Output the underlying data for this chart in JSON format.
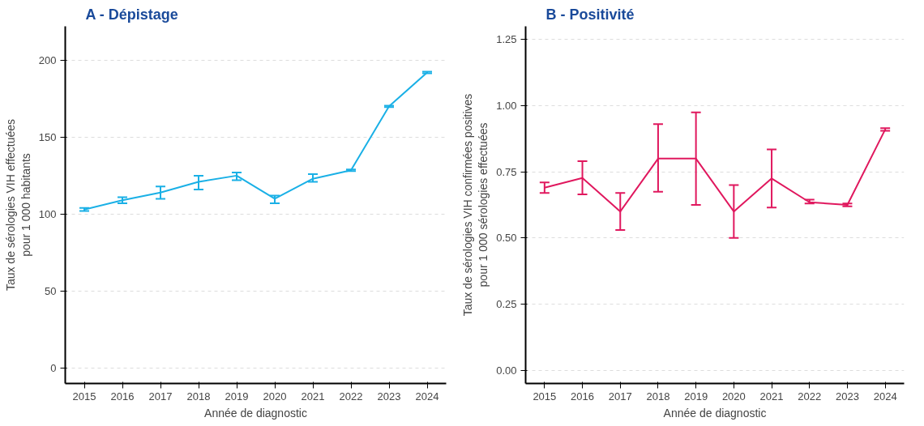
{
  "chart_data": [
    {
      "type": "line",
      "title": "A - Dépistage",
      "xlabel": "Année de diagnostic",
      "ylabel": "Taux de sérologies VIH effectuées\npour 1 000 habitants",
      "x": [
        2015,
        2016,
        2017,
        2018,
        2019,
        2020,
        2021,
        2022,
        2023,
        2024
      ],
      "xlim": [
        2014.5,
        2024.5
      ],
      "xticks": [
        2015,
        2016,
        2017,
        2018,
        2019,
        2020,
        2021,
        2022,
        2023,
        2024
      ],
      "ylim": [
        -10,
        222
      ],
      "yticks": [
        0,
        50,
        100,
        150,
        200
      ],
      "grid": "y",
      "marker": "none",
      "line_style": "solid",
      "series": [
        {
          "color": "#1ab0e6",
          "values": [
            103,
            109,
            114,
            121,
            125,
            110,
            123,
            128.5,
            170,
            192
          ],
          "errors": [
            [
              102,
              104
            ],
            [
              107,
              111
            ],
            [
              110,
              118
            ],
            [
              116,
              125
            ],
            [
              122,
              127
            ],
            [
              107,
              112
            ],
            [
              121,
              126
            ],
            [
              128,
              129
            ],
            [
              169.5,
              170.5
            ],
            [
              191.5,
              192.5
            ]
          ]
        }
      ]
    },
    {
      "type": "line",
      "title": "B - Positivité",
      "xlabel": "Année de diagnostic",
      "ylabel": "Taux de sérologies VIH confirmées positives\npour 1 000 sérologies effectuées",
      "x": [
        2015,
        2016,
        2017,
        2018,
        2019,
        2020,
        2021,
        2022,
        2023,
        2024
      ],
      "xlim": [
        2014.5,
        2024.5
      ],
      "xticks": [
        2015,
        2016,
        2017,
        2018,
        2019,
        2020,
        2021,
        2022,
        2023,
        2024
      ],
      "ylim": [
        -0.05,
        1.3
      ],
      "yticks": [
        {
          "value": 0,
          "label": "0.00"
        },
        {
          "value": 0.25,
          "label": "0.25"
        },
        {
          "value": 0.5,
          "label": "0.50"
        },
        {
          "value": 0.75,
          "label": "0.75"
        },
        {
          "value": 1,
          "label": "1.00"
        },
        {
          "value": 1.25,
          "label": "1.25"
        }
      ],
      "grid": "y",
      "marker": "none",
      "line_style": "solid",
      "series": [
        {
          "color": "#e0185e",
          "values": [
            0.69,
            0.727,
            0.6,
            0.8,
            0.8,
            0.6,
            0.725,
            0.635,
            0.625,
            0.91
          ],
          "errors": [
            [
              0.67,
              0.71
            ],
            [
              0.665,
              0.79
            ],
            [
              0.53,
              0.67
            ],
            [
              0.675,
              0.93
            ],
            [
              0.625,
              0.975
            ],
            [
              0.5,
              0.7
            ],
            [
              0.615,
              0.835
            ],
            [
              0.63,
              0.645
            ],
            [
              0.62,
              0.63
            ],
            [
              0.905,
              0.915
            ]
          ]
        }
      ]
    }
  ]
}
